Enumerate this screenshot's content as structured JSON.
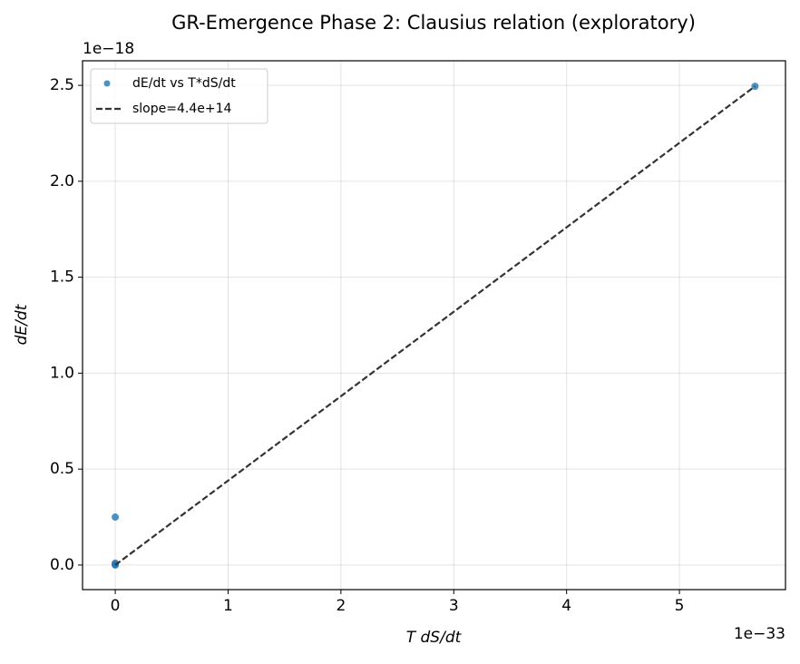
{
  "chart_data": {
    "type": "scatter",
    "title": "GR-Emergence Phase 2: Clausius relation (exploratory)",
    "xlabel": "T dS/dt",
    "ylabel": "dE/dt",
    "x_offset_label": "1e−33",
    "y_offset_label": "1e−18",
    "xlim": [
      -0.29,
      5.94
    ],
    "ylim": [
      -0.128,
      2.628
    ],
    "xticks": [
      0,
      1,
      2,
      3,
      4,
      5
    ],
    "yticks": [
      {
        "value": 0,
        "label": "0.0"
      },
      {
        "value": 0.5,
        "label": "0.5"
      },
      {
        "value": 1,
        "label": "1.0"
      },
      {
        "value": 1.5,
        "label": "1.5"
      },
      {
        "value": 2,
        "label": "2.0"
      },
      {
        "value": 2.5,
        "label": "2.5"
      }
    ],
    "grid": true,
    "legend": "upper left",
    "series": [
      {
        "name": "dE/dt vs T*dS/dt",
        "type": "scatter",
        "color": "#1f77b4",
        "x": [
          0,
          0,
          0,
          0,
          5.67
        ],
        "values": [
          0,
          0.003,
          0.01,
          0.25,
          2.495
        ]
      },
      {
        "name": "slope=4.4e+14",
        "type": "line",
        "color": "#333333",
        "dashed": true,
        "x": [
          0,
          5.67
        ],
        "values": [
          0,
          2.495
        ]
      }
    ]
  }
}
